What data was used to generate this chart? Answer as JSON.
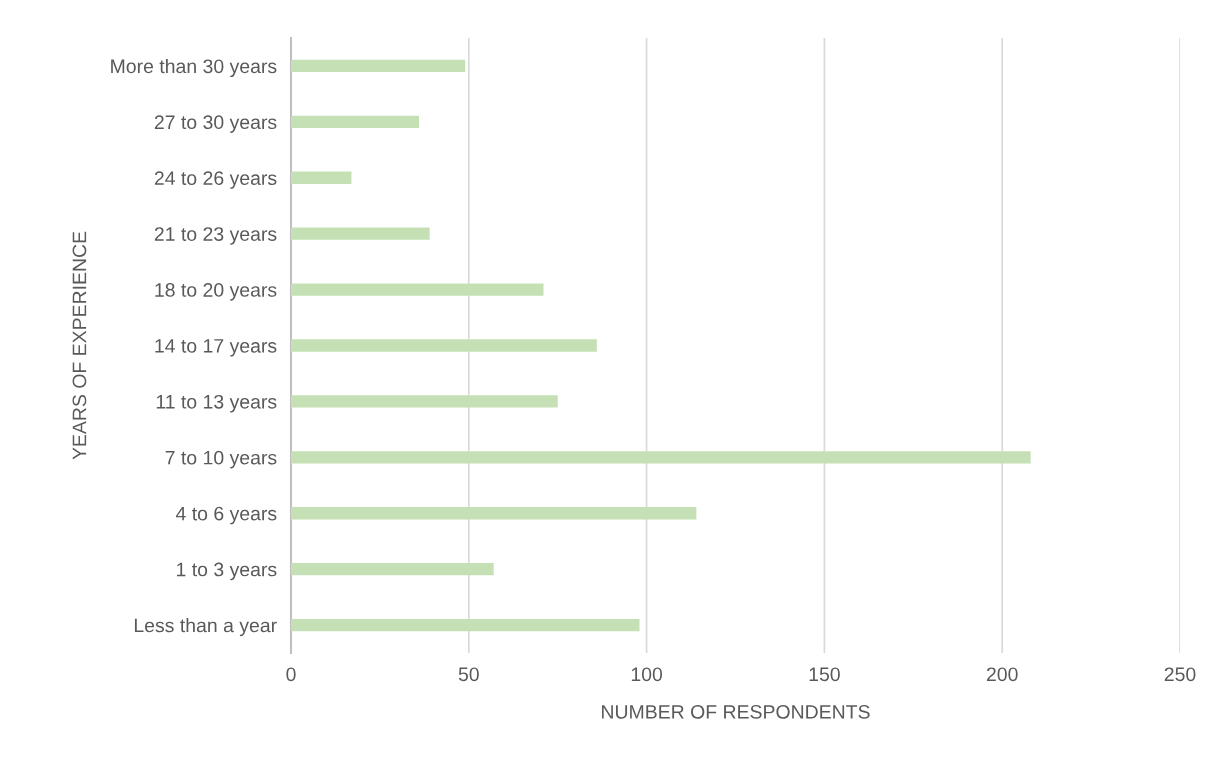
{
  "chart_data": {
    "type": "bar",
    "orientation": "horizontal",
    "xlabel": "NUMBER OF RESPONDENTS",
    "ylabel": "YEARS OF EXPERIENCE",
    "categories": [
      "More than 30 years",
      "27 to 30 years",
      "24 to 26 years",
      "21 to 23 years",
      "18 to 20 years",
      "14 to 17 years",
      "11 to 13 years",
      "7 to 10 years",
      "4 to 6 years",
      "1 to 3 years",
      "Less than a year"
    ],
    "values": [
      49,
      36,
      17,
      39,
      71,
      86,
      75,
      208,
      114,
      57,
      98
    ],
    "color": "#c5e0b4",
    "xlim": [
      0,
      250
    ],
    "xticks": [
      0,
      50,
      100,
      150,
      200,
      250
    ],
    "grid": "x",
    "legend": false
  }
}
